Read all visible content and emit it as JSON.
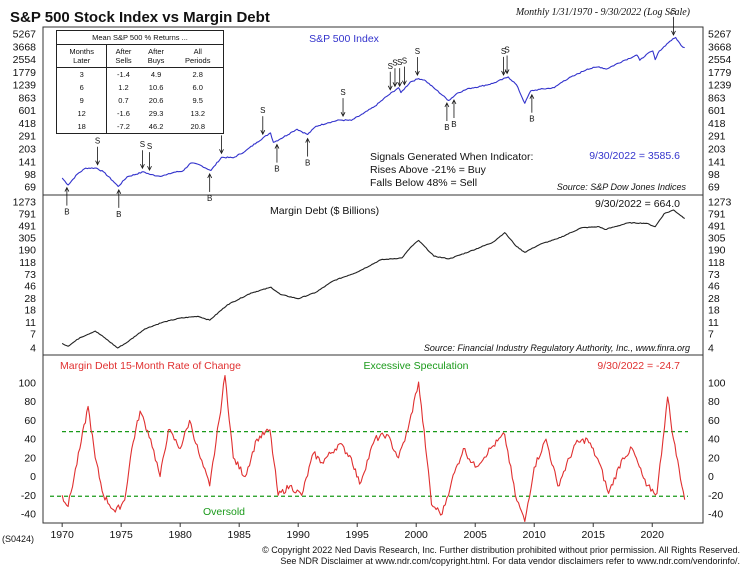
{
  "title": "S&P 500 Stock Index vs Margin Debt",
  "subtitle": "Monthly 1/31/1970 - 9/30/2022 (Log Scale)",
  "table": {
    "caption": "Mean S&P 500 % Returns ...",
    "headers": [
      [
        "Months",
        "Later"
      ],
      [
        "After",
        "Sells"
      ],
      [
        "After",
        "Buys"
      ],
      [
        "All",
        "Periods"
      ]
    ],
    "rows": [
      [
        "3",
        "-1.4",
        "4.9",
        "2.8"
      ],
      [
        "6",
        "1.2",
        "10.6",
        "6.0"
      ],
      [
        "9",
        "0.7",
        "20.6",
        "9.5"
      ],
      [
        "12",
        "-1.6",
        "29.3",
        "13.2"
      ],
      [
        "18",
        "-7.2",
        "46.2",
        "20.8"
      ]
    ]
  },
  "panel1": {
    "label": "S&P 500 Index",
    "last_value_text": "9/30/2022 = 3585.6",
    "signals_title": "Signals Generated When Indicator:",
    "signals_buy": "Rises Above -21% = Buy",
    "signals_sell": "Falls Below 48% = Sell",
    "source": "Source: S&P Dow Jones Indices"
  },
  "panel2": {
    "label": "Margin Debt ($ Billions)",
    "last_value_text": "9/30/2022 = 664.0",
    "source": "Source: Financial Industry Regulatory Authority, Inc., www.finra.org"
  },
  "panel3": {
    "label": "Margin Debt 15-Month Rate of Change",
    "excessive_label": "Excessive Speculation",
    "oversold_label": "Oversold",
    "last_value_text": "9/30/2022 = -24.7"
  },
  "chart_id": "(S0424)",
  "footer": {
    "line1": "© Copyright 2022 Ned Davis Research, Inc.  Further distribution prohibited without prior permission.  All Rights Reserved.",
    "line2": "See NDR Disclaimer at www.ndr.com/copyright.html.  For data vendor disclaimers refer to www.ndr.com/vendorinfo/."
  },
  "colors": {
    "sp500": "#3333cc",
    "margin": "#222222",
    "roc": "#e03030",
    "excessive": "#1a9a1a",
    "oversold": "#1a9a1a",
    "last_sp": "#3333cc",
    "last_roc": "#e03030"
  },
  "chart_data": [
    {
      "type": "line",
      "title": "S&P 500 Index",
      "scale": "log",
      "x": [
        1970,
        1970.5,
        1971.3,
        1972,
        1972.9,
        1973.5,
        1974.3,
        1974.75,
        1975.5,
        1976.9,
        1977.5,
        1978.2,
        1978.8,
        1979.5,
        1980.2,
        1980.9,
        1981.6,
        1982.6,
        1983.5,
        1984.5,
        1985.5,
        1986.5,
        1987.65,
        1987.9,
        1988.5,
        1989.5,
        1989.9,
        1990.8,
        1991.5,
        1992.5,
        1993.5,
        1994.5,
        1995.5,
        1996.5,
        1997.5,
        1998.5,
        1998.7,
        1999.5,
        2000.2,
        2000.7,
        2001.7,
        2002.75,
        2003.5,
        2004.5,
        2005.5,
        2006.5,
        2007.8,
        2008.5,
        2009.2,
        2009.7,
        2010.5,
        2011.7,
        2012.5,
        2013.5,
        2014.5,
        2015.5,
        2016.1,
        2017.5,
        2018.7,
        2018.95,
        2019.5,
        2020.05,
        2020.25,
        2020.6,
        2021.5,
        2021.99,
        2022.45,
        2022.75
      ],
      "values": [
        89,
        73,
        100,
        118,
        118,
        106,
        82,
        70,
        92,
        106,
        98,
        94,
        97,
        105,
        108,
        136,
        130,
        110,
        160,
        158,
        190,
        245,
        320,
        245,
        270,
        330,
        355,
        305,
        385,
        425,
        460,
        455,
        550,
        680,
        900,
        1150,
        1000,
        1350,
        1490,
        1430,
        1080,
        800,
        990,
        1130,
        1200,
        1300,
        1560,
        1250,
        740,
        1050,
        1100,
        1150,
        1400,
        1650,
        1950,
        2080,
        1950,
        2450,
        2900,
        2500,
        2950,
        3250,
        2550,
        3250,
        4300,
        4766,
        3800,
        3585.6
      ],
      "sell_signals": [
        1973.0,
        1976.8,
        1977.4,
        1983.5,
        1987.0,
        1993.8,
        1997.8,
        1998.2,
        1998.6,
        1999.0,
        2000.1,
        2007.4,
        2007.7,
        2021.8
      ],
      "buy_signals": [
        1970.4,
        1974.8,
        1982.5,
        1988.2,
        1990.8,
        2002.6,
        2003.2,
        2009.8
      ]
    },
    {
      "type": "line",
      "title": "Margin Debt ($ Billions)",
      "scale": "log",
      "x": [
        1970,
        1970.5,
        1971.5,
        1972.8,
        1973.5,
        1974.7,
        1975.5,
        1977,
        1978.5,
        1980,
        1981.5,
        1982.5,
        1984,
        1986,
        1987.7,
        1988.5,
        1990,
        1991.5,
        1993,
        1995,
        1997,
        1998.8,
        1999.5,
        2000.2,
        2001.5,
        2002.8,
        2004.5,
        2006.5,
        2007.5,
        2008.5,
        2009.2,
        2010.5,
        2012,
        2014,
        2015.5,
        2016,
        2018,
        2019.5,
        2020.25,
        2021,
        2021.8,
        2022.75
      ],
      "values": [
        4.8,
        4.3,
        6.0,
        7.8,
        6.2,
        4.0,
        5.0,
        8.5,
        11,
        13,
        14,
        12,
        22,
        35,
        44,
        33,
        28,
        36,
        57,
        80,
        130,
        140,
        210,
        280,
        150,
        135,
        180,
        260,
        380,
        220,
        175,
        240,
        300,
        460,
        480,
        430,
        560,
        550,
        480,
        800,
        930,
        664.0
      ]
    },
    {
      "type": "line",
      "title": "Margin Debt 15-Month Rate of Change",
      "x": [
        1970,
        1970.5,
        1971.5,
        1972.2,
        1972.8,
        1973.5,
        1974.5,
        1975.3,
        1975.9,
        1976.6,
        1977.5,
        1978.3,
        1979,
        1980,
        1980.8,
        1981.7,
        1982.5,
        1983.3,
        1983.8,
        1984.5,
        1985.5,
        1986.5,
        1987.6,
        1988.3,
        1989.3,
        1990.3,
        1991.3,
        1992,
        1993.5,
        1994.5,
        1995.2,
        1996.5,
        1997.5,
        1998.5,
        1999.3,
        2000.2,
        2000.9,
        2001.3,
        2002.2,
        2003,
        2004,
        2005,
        2006.3,
        2007.5,
        2008.4,
        2009.2,
        2010,
        2011,
        2012,
        2013.5,
        2014.5,
        2015.5,
        2016.3,
        2017.5,
        2018.3,
        2019.5,
        2020.4,
        2021.3,
        2021.8,
        2022.75
      ],
      "values": [
        -20,
        -32,
        30,
        75,
        20,
        -20,
        -38,
        -25,
        30,
        70,
        40,
        0,
        50,
        30,
        60,
        20,
        -10,
        60,
        108,
        20,
        0,
        40,
        50,
        -20,
        -10,
        -20,
        25,
        15,
        35,
        20,
        -8,
        40,
        45,
        20,
        50,
        101,
        20,
        -30,
        -40,
        -5,
        30,
        10,
        30,
        45,
        -20,
        -48,
        10,
        40,
        -10,
        35,
        40,
        15,
        -18,
        20,
        30,
        -10,
        -18,
        85,
        40,
        -24.7
      ],
      "ylim": [
        -45,
        115
      ],
      "reference_lines": {
        "excessive_speculation": 48,
        "oversold": -21
      }
    }
  ],
  "axes": {
    "p1_ticks": [
      "69",
      "98",
      "141",
      "203",
      "291",
      "418",
      "601",
      "863",
      "1239",
      "1779",
      "2554",
      "3668",
      "5267"
    ],
    "p2_ticks": [
      "4",
      "7",
      "11",
      "18",
      "28",
      "46",
      "73",
      "118",
      "190",
      "305",
      "491",
      "791",
      "1273"
    ],
    "p3_ticks": [
      "-40",
      "-20",
      "0",
      "20",
      "40",
      "60",
      "80",
      "100"
    ],
    "x_years": [
      "1970",
      "1975",
      "1980",
      "1985",
      "1990",
      "1995",
      "2000",
      "2005",
      "2010",
      "2015",
      "2020"
    ]
  }
}
